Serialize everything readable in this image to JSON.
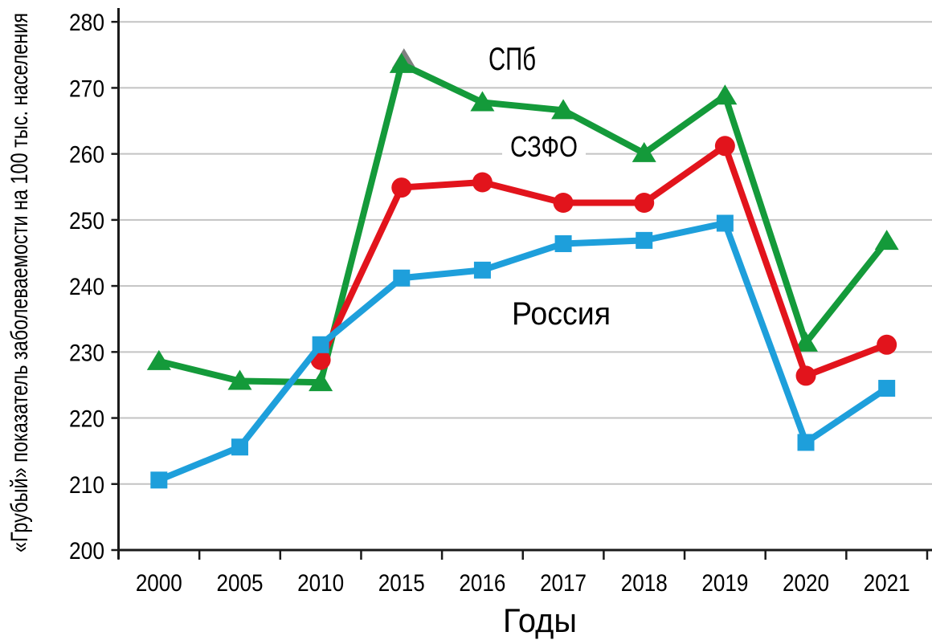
{
  "chart_data": {
    "type": "line",
    "title": "",
    "xlabel": "Годы",
    "ylabel": "«Грубый» показатель заболеваемости на 100 тыс. населения",
    "ylim": [
      200,
      280
    ],
    "ytick_step": 10,
    "grid": "horizontal",
    "legend_position": "inline-labels-near-lines",
    "categories": [
      "2000",
      "2005",
      "2010",
      "2015",
      "2016",
      "2017",
      "2018",
      "2019",
      "2020",
      "2021"
    ],
    "series": [
      {
        "name": "СПб",
        "marker": "triangle",
        "color": "#149A3A",
        "values": [
          228.6,
          225.6,
          225.4,
          273.6,
          267.8,
          266.6,
          260.1,
          268.8,
          231.4,
          246.8
        ]
      },
      {
        "name": "СЗФО",
        "marker": "circle",
        "color": "#E2141C",
        "values": [
          null,
          null,
          228.8,
          254.9,
          255.7,
          252.6,
          252.6,
          261.2,
          226.4,
          231.1
        ]
      },
      {
        "name": "Россия",
        "marker": "square",
        "color": "#1E9FDB",
        "values": [
          210.6,
          215.6,
          231.1,
          241.2,
          242.4,
          246.4,
          246.9,
          249.5,
          216.3,
          224.5
        ]
      }
    ],
    "annotations": [
      {
        "name": "grey-triangle-behind-2015-peak",
        "category": "2015",
        "value": 274.3,
        "color": "#7F7F7F"
      }
    ],
    "colors": {
      "gridline": "#C3C3C3",
      "axis": "#1A1A1A",
      "text": "#000000",
      "background": "#FFFFFF"
    }
  }
}
